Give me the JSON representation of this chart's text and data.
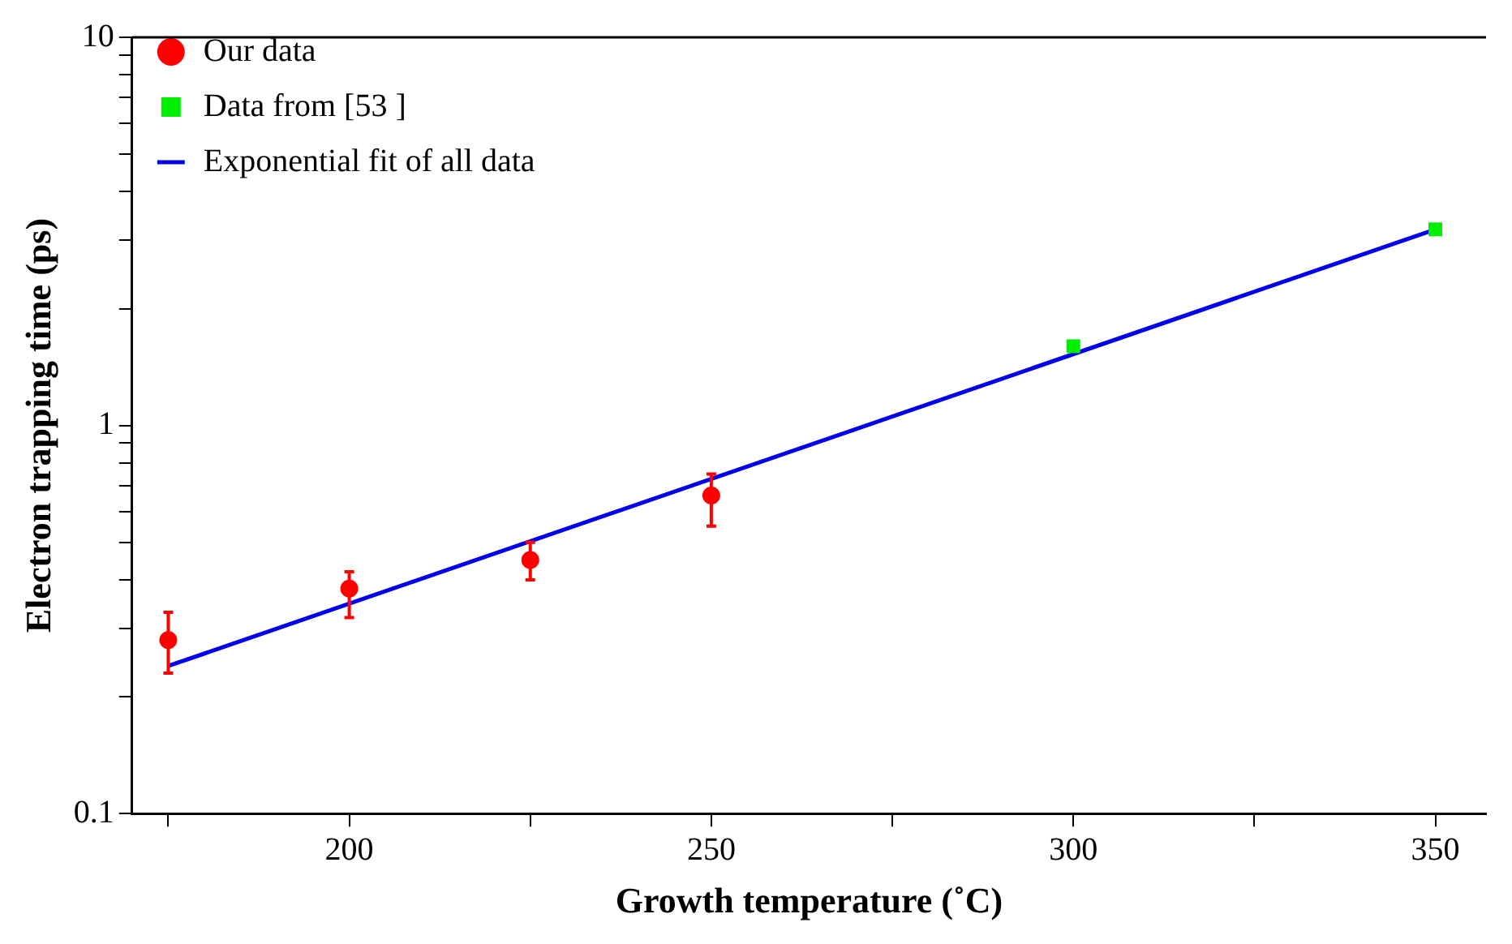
{
  "chart_data": {
    "type": "scatter",
    "xlabel": "Growth temperature (˚C)",
    "ylabel": "Electron trapping time (ps)",
    "log": "y",
    "legend": "top left",
    "grid": false,
    "xlim": [
      170,
      357
    ],
    "xticks": [
      {
        "value": 175,
        "label": null
      },
      200,
      {
        "value": 225,
        "label": null
      },
      250,
      {
        "value": 275,
        "label": null
      },
      300,
      {
        "value": 325,
        "label": null
      },
      350
    ],
    "ylim": [
      0.1,
      10
    ],
    "yticks": [
      0.1,
      {
        "value": 0.2,
        "label": null
      },
      {
        "value": 0.3,
        "label": null
      },
      {
        "value": 0.4,
        "label": null
      },
      {
        "value": 0.5,
        "label": null
      },
      {
        "value": 0.6,
        "label": null
      },
      {
        "value": 0.7,
        "label": null
      },
      {
        "value": 0.8,
        "label": null
      },
      {
        "value": 0.9,
        "label": null
      },
      1,
      {
        "value": 2,
        "label": null
      },
      {
        "value": 3,
        "label": null
      },
      {
        "value": 4,
        "label": null
      },
      {
        "value": 5,
        "label": null
      },
      {
        "value": 6,
        "label": null
      },
      {
        "value": 7,
        "label": null
      },
      {
        "value": 8,
        "label": null
      },
      {
        "value": 9,
        "label": null
      },
      10
    ],
    "series": [
      {
        "name": "Our data",
        "marker": "circle",
        "color": "#ff0000",
        "x": [
          175,
          200,
          225,
          250
        ],
        "values": [
          0.28,
          0.38,
          0.45,
          0.66
        ],
        "errors": [
          [
            0.23,
            0.33
          ],
          [
            0.32,
            0.42
          ],
          [
            0.4,
            0.5
          ],
          [
            0.55,
            0.75
          ]
        ]
      },
      {
        "name": "Data from [53 ]",
        "marker": "square",
        "color": "#00ee00",
        "x": [
          300,
          350
        ],
        "values": [
          1.6,
          3.2
        ]
      },
      {
        "name": "Exponential fit of all data",
        "type": "line",
        "marker": "none",
        "line_style": "solid",
        "color": "#0000ee",
        "x": [
          175,
          350
        ],
        "values": [
          0.24,
          3.2
        ]
      }
    ]
  }
}
